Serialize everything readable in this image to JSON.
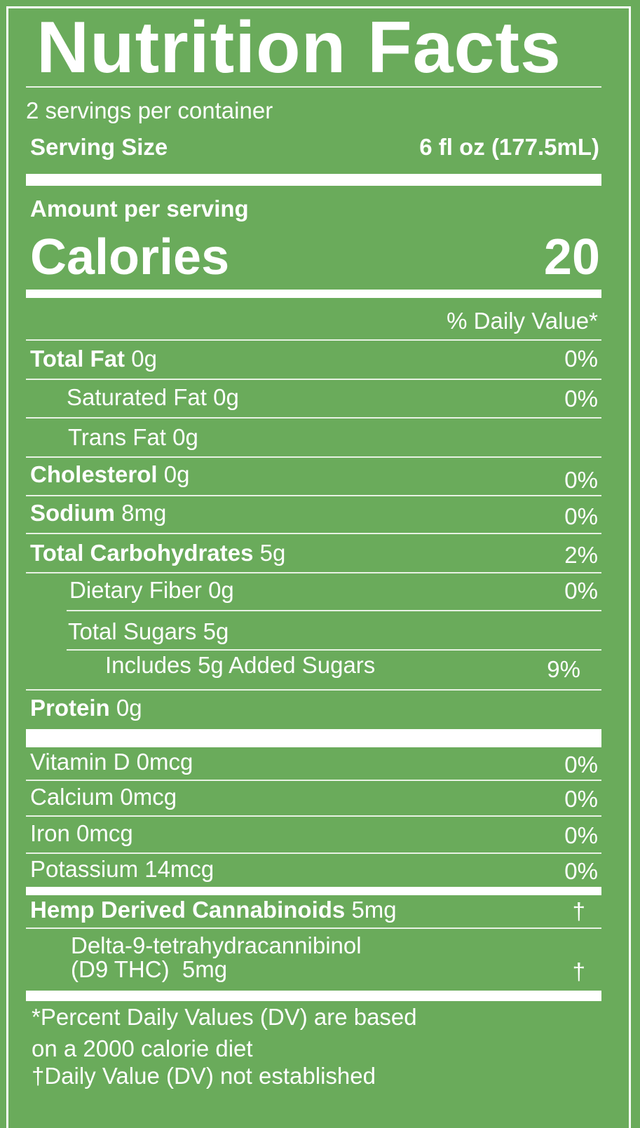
{
  "title": "Nutrition Facts",
  "servings_per_container": "2 servings per container",
  "serving_size_label": "Serving Size",
  "serving_size_value": "6 fl oz (177.5mL)",
  "amount_per_serving": "Amount per serving",
  "calories_label": "Calories",
  "calories_value": "20",
  "dv_header": "% Daily Value*",
  "nutrients": [
    {
      "name": "Total Fat",
      "amount": "0g",
      "dv": "0%"
    },
    {
      "name": "Saturated Fat",
      "amount": "0g",
      "dv": "0%"
    },
    {
      "name": "Trans Fat",
      "amount": "0g"
    },
    {
      "name": "Cholesterol",
      "amount": "0g",
      "dv": "0%"
    },
    {
      "name": "Sodium",
      "amount": "8mg",
      "dv": "0%"
    },
    {
      "name": "Total Carbohydrates",
      "amount": "5g",
      "dv": "2%"
    },
    {
      "name": "Dietary Fiber",
      "amount": "0g",
      "dv": "0%"
    },
    {
      "name": "Total Sugars",
      "amount": "5g"
    },
    {
      "name": "Includes 5g Added Sugars",
      "dv": "9%"
    },
    {
      "name": "Protein",
      "amount": "0g"
    }
  ],
  "vitamins": [
    {
      "text": "Vitamin D 0mcg",
      "dv": "0%"
    },
    {
      "text": "Calcium 0mcg",
      "dv": "0%"
    },
    {
      "text": "Iron 0mcg",
      "dv": "0%"
    },
    {
      "text": "Potassium 14mcg",
      "dv": "0%"
    }
  ],
  "cannabinoids": {
    "name": "Hemp Derived Cannabinoids",
    "amount": "5mg",
    "dv": "†",
    "sub_line1": "Delta-9-tetrahydracannibinol",
    "sub_line2": "(D9 THC)  5mg",
    "sub_dv": "†"
  },
  "footnotes": [
    "*Percent Daily Values (DV) are based",
    "on a 2000 calorie diet",
    "†Daily Value (DV) not established"
  ],
  "colors": {
    "background": "#6aab5b",
    "text": "#ffffff"
  }
}
